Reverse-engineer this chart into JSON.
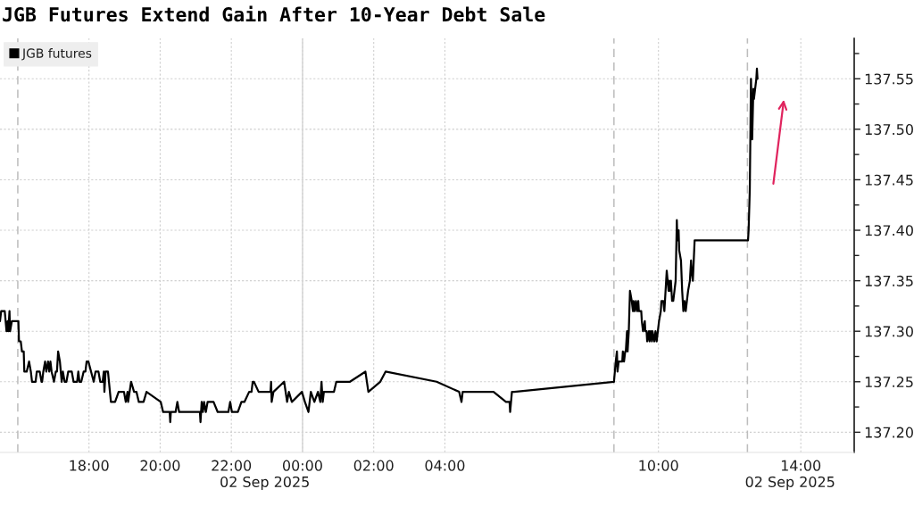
{
  "chart_data": {
    "type": "line",
    "title": "JGB Futures Extend Gain After 10-Year Debt Sale",
    "series": [
      {
        "name": "JGB futures",
        "color": "#000000",
        "x": [
          "2025-09-01T15:30",
          "2025-09-01T15:32",
          "2025-09-01T15:38",
          "2025-09-01T15:41",
          "2025-09-01T15:43",
          "2025-09-01T15:44",
          "2025-09-01T15:46",
          "2025-09-01T15:47",
          "2025-09-01T15:50",
          "2025-09-01T16:01",
          "2025-09-01T16:02",
          "2025-09-01T16:05",
          "2025-09-01T16:07",
          "2025-09-01T16:10",
          "2025-09-01T16:11",
          "2025-09-01T16:15",
          "2025-09-01T16:19",
          "2025-09-01T16:22",
          "2025-09-01T16:24",
          "2025-09-01T16:30",
          "2025-09-01T16:32",
          "2025-09-01T16:37",
          "2025-09-01T16:40",
          "2025-09-01T16:41",
          "2025-09-01T16:43",
          "2025-09-01T16:46",
          "2025-09-01T16:48",
          "2025-09-01T16:51",
          "2025-09-01T16:53",
          "2025-09-01T16:55",
          "2025-09-01T16:57",
          "2025-09-01T17:01",
          "2025-09-01T17:04",
          "2025-09-01T17:06",
          "2025-09-01T17:08",
          "2025-09-01T17:11",
          "2025-09-01T17:14",
          "2025-09-01T17:16",
          "2025-09-01T17:19",
          "2025-09-01T17:22",
          "2025-09-01T17:25",
          "2025-09-01T17:31",
          "2025-09-01T17:34",
          "2025-09-01T17:40",
          "2025-09-01T17:42",
          "2025-09-01T17:44",
          "2025-09-01T17:47",
          "2025-09-01T17:51",
          "2025-09-01T17:54",
          "2025-09-01T17:56",
          "2025-09-01T17:59",
          "2025-09-01T18:08",
          "2025-09-01T18:11",
          "2025-09-01T18:16",
          "2025-09-01T18:19",
          "2025-09-01T18:23",
          "2025-09-01T18:25",
          "2025-09-01T18:26",
          "2025-09-01T18:28",
          "2025-09-01T18:32",
          "2025-09-01T18:37",
          "2025-09-01T18:44",
          "2025-09-01T18:50",
          "2025-09-01T18:59",
          "2025-09-01T19:02",
          "2025-09-01T19:05",
          "2025-09-01T19:06",
          "2025-09-01T19:11",
          "2025-09-01T19:16",
          "2025-09-01T19:20",
          "2025-09-01T19:24",
          "2025-09-01T19:32",
          "2025-09-01T19:37",
          "2025-09-01T20:01",
          "2025-09-01T20:05",
          "2025-09-01T20:16",
          "2025-09-01T20:17",
          "2025-09-01T20:18",
          "2025-09-01T20:26",
          "2025-09-01T20:29",
          "2025-09-01T20:32",
          "2025-09-01T21:07",
          "2025-09-01T21:08",
          "2025-09-01T21:10",
          "2025-09-01T21:12",
          "2025-09-01T21:14",
          "2025-09-01T21:17",
          "2025-09-01T21:20",
          "2025-09-01T21:30",
          "2025-09-01T21:37",
          "2025-09-01T21:55",
          "2025-09-01T21:58",
          "2025-09-01T22:01",
          "2025-09-01T22:11",
          "2025-09-01T22:17",
          "2025-09-01T22:22",
          "2025-09-01T22:30",
          "2025-09-01T22:34",
          "2025-09-01T22:36",
          "2025-09-01T22:38",
          "2025-09-01T22:46",
          "2025-09-01T23:06",
          "2025-09-01T23:07",
          "2025-09-01T23:08",
          "2025-09-01T23:11",
          "2025-09-01T23:29",
          "2025-09-01T23:34",
          "2025-09-01T23:37",
          "2025-09-01T23:42",
          "2025-09-01T23:59",
          "2025-09-02T00:04",
          "2025-09-02T00:10",
          "2025-09-02T00:14",
          "2025-09-02T00:20",
          "2025-09-02T00:26",
          "2025-09-02T00:30",
          "2025-09-02T00:32",
          "2025-09-02T00:34",
          "2025-09-02T00:36",
          "2025-09-02T00:53",
          "2025-09-02T00:57",
          "2025-09-02T01:20",
          "2025-09-02T01:46",
          "2025-09-02T01:51",
          "2025-09-02T02:11",
          "2025-09-02T02:20",
          "2025-09-02T03:46",
          "2025-09-02T04:24",
          "2025-09-02T04:28",
          "2025-09-02T04:30",
          "2025-09-02T05:22",
          "2025-09-02T05:43",
          "2025-09-02T05:49",
          "2025-09-02T05:50",
          "2025-09-02T05:53",
          "2025-09-02T05:57",
          "2025-09-02T08:45",
          "2025-09-02T08:48",
          "2025-09-02T08:50",
          "2025-09-02T08:51",
          "2025-09-02T08:53",
          "2025-09-02T08:59",
          "2025-09-02T09:00",
          "2025-09-02T09:02",
          "2025-09-02T09:04",
          "2025-09-02T09:05",
          "2025-09-02T09:07",
          "2025-09-02T09:08",
          "2025-09-02T09:10",
          "2025-09-02T09:12",
          "2025-09-02T09:15",
          "2025-09-02T09:17",
          "2025-09-02T09:18",
          "2025-09-02T09:20",
          "2025-09-02T09:22",
          "2025-09-02T09:24",
          "2025-09-02T09:26",
          "2025-09-02T09:27",
          "2025-09-02T09:31",
          "2025-09-02T09:32",
          "2025-09-02T09:34",
          "2025-09-02T09:37",
          "2025-09-02T09:38",
          "2025-09-02T09:40",
          "2025-09-02T09:41",
          "2025-09-02T09:44",
          "2025-09-02T09:45",
          "2025-09-02T09:47",
          "2025-09-02T09:49",
          "2025-09-02T09:50",
          "2025-09-02T09:53",
          "2025-09-02T09:55",
          "2025-09-02T09:57",
          "2025-09-02T09:59",
          "2025-09-02T10:01",
          "2025-09-02T10:04",
          "2025-09-02T10:05",
          "2025-09-02T10:08",
          "2025-09-02T10:10",
          "2025-09-02T10:13",
          "2025-09-02T10:14",
          "2025-09-02T10:17",
          "2025-09-02T10:18",
          "2025-09-02T10:19",
          "2025-09-02T10:21",
          "2025-09-02T10:23",
          "2025-09-02T10:25",
          "2025-09-02T10:27",
          "2025-09-02T10:29",
          "2025-09-02T10:31",
          "2025-09-02T10:32",
          "2025-09-02T10:34",
          "2025-09-02T10:35",
          "2025-09-02T10:38",
          "2025-09-02T10:40",
          "2025-09-02T10:42",
          "2025-09-02T10:44",
          "2025-09-02T10:46",
          "2025-09-02T10:48",
          "2025-09-02T10:50",
          "2025-09-02T10:53",
          "2025-09-02T10:55",
          "2025-09-02T10:56",
          "2025-09-02T10:58",
          "2025-09-02T11:01",
          "2025-09-02T12:31",
          "2025-09-02T12:32",
          "2025-09-02T12:34",
          "2025-09-02T12:36",
          "2025-09-02T12:38",
          "2025-09-02T12:40",
          "2025-09-02T12:41",
          "2025-09-02T12:43",
          "2025-09-02T12:45",
          "2025-09-02T12:46",
          "2025-09-02T12:47"
        ],
        "values": [
          137.31,
          137.32,
          137.32,
          137.3,
          137.31,
          137.3,
          137.32,
          137.3,
          137.31,
          137.31,
          137.29,
          137.29,
          137.28,
          137.28,
          137.26,
          137.26,
          137.27,
          137.26,
          137.25,
          137.25,
          137.26,
          137.26,
          137.25,
          137.25,
          137.26,
          137.27,
          137.26,
          137.27,
          137.26,
          137.27,
          137.26,
          137.25,
          137.26,
          137.26,
          137.28,
          137.27,
          137.25,
          137.26,
          137.25,
          137.25,
          137.26,
          137.26,
          137.25,
          137.25,
          137.26,
          137.25,
          137.25,
          137.26,
          137.26,
          137.27,
          137.27,
          137.25,
          137.26,
          137.26,
          137.25,
          137.25,
          137.26,
          137.24,
          137.26,
          137.26,
          137.23,
          137.23,
          137.24,
          137.24,
          137.23,
          137.24,
          137.23,
          137.25,
          137.24,
          137.24,
          137.23,
          137.23,
          137.24,
          137.23,
          137.22,
          137.22,
          137.21,
          137.22,
          137.22,
          137.23,
          137.22,
          137.22,
          137.21,
          137.23,
          137.22,
          137.23,
          137.22,
          137.23,
          137.23,
          137.22,
          137.22,
          137.23,
          137.22,
          137.22,
          137.23,
          137.23,
          137.24,
          137.24,
          137.25,
          137.25,
          137.24,
          137.24,
          137.25,
          137.23,
          137.24,
          137.25,
          137.23,
          137.24,
          137.23,
          137.24,
          137.23,
          137.22,
          137.24,
          137.23,
          137.24,
          137.23,
          137.25,
          137.23,
          137.24,
          137.24,
          137.25,
          137.25,
          137.26,
          137.24,
          137.25,
          137.26,
          137.25,
          137.24,
          137.23,
          137.24,
          137.24,
          137.23,
          137.23,
          137.22,
          137.24,
          137.24,
          137.25,
          137.27,
          137.28,
          137.26,
          137.27,
          137.27,
          137.28,
          137.27,
          137.28,
          137.28,
          137.3,
          137.28,
          137.3,
          137.34,
          137.33,
          137.32,
          137.33,
          137.32,
          137.33,
          137.32,
          137.33,
          137.32,
          137.32,
          137.31,
          137.3,
          137.31,
          137.3,
          137.3,
          137.29,
          137.3,
          137.29,
          137.3,
          137.29,
          137.3,
          137.29,
          137.3,
          137.29,
          137.3,
          137.31,
          137.32,
          137.33,
          137.33,
          137.32,
          137.35,
          137.36,
          137.34,
          137.35,
          137.34,
          137.35,
          137.33,
          137.33,
          137.34,
          137.35,
          137.41,
          137.39,
          137.4,
          137.38,
          137.37,
          137.34,
          137.32,
          137.33,
          137.32,
          137.33,
          137.34,
          137.35,
          137.37,
          137.36,
          137.35,
          137.39,
          137.39,
          137.4,
          137.44,
          137.55,
          137.49,
          137.54,
          137.53,
          137.54,
          137.55,
          137.56,
          137.55
        ]
      }
    ],
    "xlim": [
      "2025-09-01T15:30",
      "2025-09-02T15:30"
    ],
    "xticks": [
      {
        "value": "2025-09-01T18:00",
        "label": "18:00"
      },
      {
        "value": "2025-09-01T20:00",
        "label": "20:00"
      },
      {
        "value": "2025-09-01T22:00",
        "label": "22:00"
      },
      {
        "value": "2025-09-02T00:00",
        "label": "00:00"
      },
      {
        "value": "2025-09-02T02:00",
        "label": "02:00"
      },
      {
        "value": "2025-09-02T04:00",
        "label": "04:00"
      },
      {
        "value": "2025-09-02T10:00",
        "label": "10:00"
      },
      {
        "value": "2025-09-02T14:00",
        "label": "14:00"
      }
    ],
    "ylim": [
      137.18,
      137.59
    ],
    "yticks": [
      {
        "value": 137.2,
        "label": "137.20"
      },
      {
        "value": 137.225,
        "label": null
      },
      {
        "value": 137.25,
        "label": "137.25"
      },
      {
        "value": 137.275,
        "label": null
      },
      {
        "value": 137.3,
        "label": "137.30"
      },
      {
        "value": 137.325,
        "label": null
      },
      {
        "value": 137.35,
        "label": "137.35"
      },
      {
        "value": 137.375,
        "label": null
      },
      {
        "value": 137.4,
        "label": "137.40"
      },
      {
        "value": 137.425,
        "label": null
      },
      {
        "value": 137.45,
        "label": "137.45"
      },
      {
        "value": 137.475,
        "label": null
      },
      {
        "value": 137.5,
        "label": "137.50"
      },
      {
        "value": 137.525,
        "label": null
      },
      {
        "value": 137.55,
        "label": "137.55"
      },
      {
        "value": 137.575,
        "label": null
      }
    ],
    "ref_lines": [
      {
        "axis": "x",
        "value": "2025-09-01T16:00",
        "line_style": "dashed",
        "color": "#bdbdbd"
      },
      {
        "axis": "x",
        "value": "2025-09-02T00:00",
        "line_style": "solid",
        "color": "#d6d6d6"
      },
      {
        "axis": "x",
        "value": "2025-09-02T08:45",
        "line_style": "dashed",
        "color": "#bdbdbd"
      },
      {
        "axis": "x",
        "value": "2025-09-02T12:30",
        "line_style": "dashed",
        "color": "#bdbdbd"
      }
    ],
    "annotations": [
      "02 Sep 2025",
      "02 Sep 2025"
    ],
    "grid": true,
    "legend": "top left"
  }
}
